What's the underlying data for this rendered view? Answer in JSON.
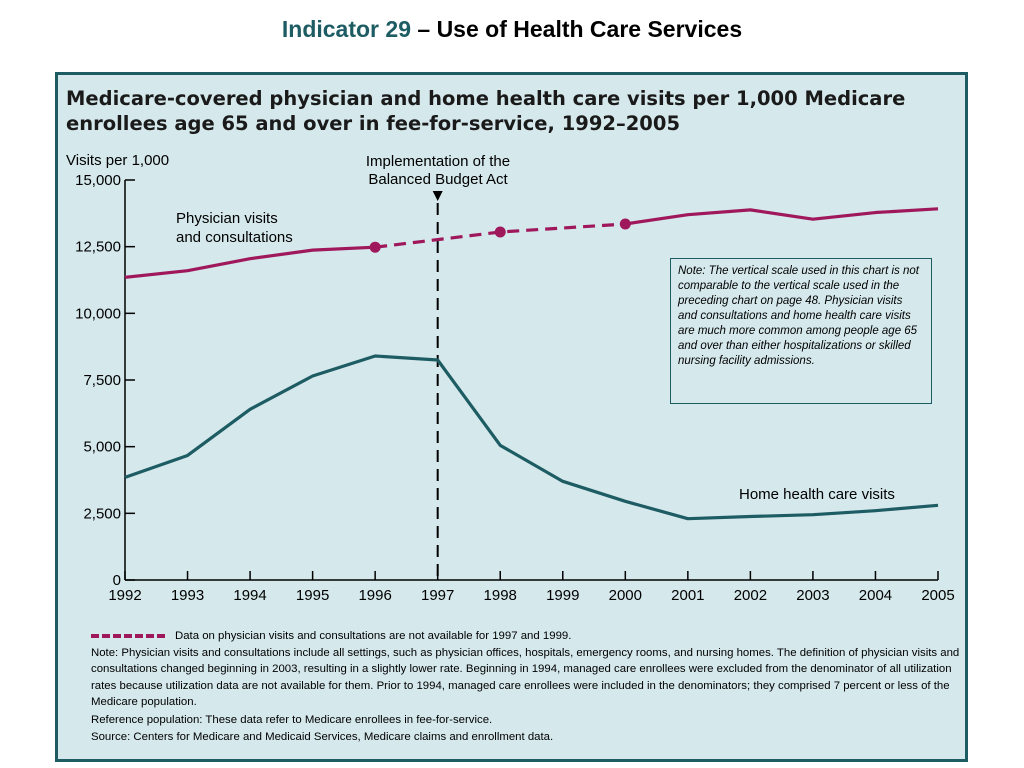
{
  "header": {
    "indicator": "Indicator 29",
    "title_rest": " – Use of Health Care Services"
  },
  "colors": {
    "physician": "#a0185c",
    "home_health": "#1d5c63",
    "panel_bg": "#d5e8ec"
  },
  "chart_data": {
    "type": "line",
    "title_line1": "Medicare-covered physician and home health care visits per 1,000 Medicare",
    "title_line2": "enrollees age 65 and over in fee-for-service, 1992–2005",
    "ylabel": "Visits per 1,000",
    "ylim": [
      0,
      15000
    ],
    "yticks": [
      "0",
      "2,500",
      "5,000",
      "7,500",
      "10,000",
      "12,500",
      "15,000"
    ],
    "x": [
      "1992",
      "1993",
      "1994",
      "1995",
      "1996",
      "1997",
      "1998",
      "1999",
      "2000",
      "2001",
      "2002",
      "2003",
      "2004",
      "2005"
    ],
    "series": [
      {
        "name": "Physician visits and consultations",
        "label_line1": "Physician visits",
        "label_line2": "and consultations",
        "values": [
          11350,
          11600,
          12050,
          12370,
          12480,
          null,
          13050,
          null,
          13350,
          13700,
          13880,
          13530,
          13780,
          13920
        ],
        "dashed_segment": [
          "1996",
          "2000"
        ],
        "markers": [
          "1996",
          "1998",
          "2000"
        ]
      },
      {
        "name": "Home health care visits",
        "values": [
          3850,
          4670,
          6400,
          7650,
          8400,
          8250,
          5050,
          3700,
          2950,
          2300,
          2380,
          2450,
          2600,
          2800
        ]
      }
    ],
    "annotations": {
      "bba_line1": "Implementation of the",
      "bba_line2": "Balanced Budget Act",
      "bba_year": "1997"
    },
    "grid": false,
    "legend": "none"
  },
  "note_box": "Note: The vertical scale used in this chart is not comparable to the vertical scale used in the preceding chart on page 48. Physician visits and consultations and home health care visits are much more common among people age 65 and over than either hospitalizations or skilled nursing facility admissions.",
  "footer": {
    "legend_text": "Data on physician visits and consultations are not available for 1997 and 1999.",
    "note": "Note: Physician visits and consultations include all settings, such as physician offices, hospitals, emergency rooms, and nursing homes. The definition of physician visits and consultations changed beginning in 2003, resulting in a slightly lower rate. Beginning in 1994, managed care enrollees were excluded from the denominator of all utilization rates because utilization data are not available for them. Prior to 1994, managed care enrollees were included in the denominators; they comprised 7 percent or less of the Medicare population.",
    "reference": "Reference population: These data refer to Medicare enrollees in fee-for-service.",
    "source": "Source: Centers for Medicare and Medicaid Services, Medicare claims and enrollment data."
  }
}
